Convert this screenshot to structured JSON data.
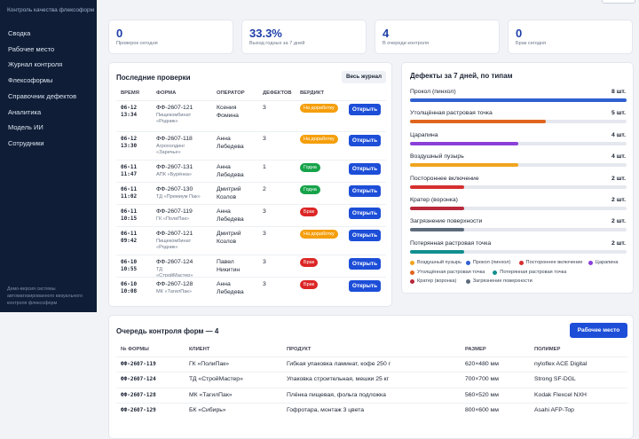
{
  "sidebar": {
    "subtitle": "Контроль качества флексоформ",
    "nav": [
      "Сводка",
      "Рабочее место",
      "Журнал контроля",
      "Флексоформы",
      "Справочник дефектов",
      "Аналитика",
      "Модель ИИ",
      "Сотрудники"
    ],
    "footer": "Демо-версия системы автоматизированного визуального контроля флексоформ"
  },
  "stats": [
    {
      "value": "0",
      "label": "Проверок сегодня"
    },
    {
      "value": "33.3%",
      "label": "Выход годных за 7 дней"
    },
    {
      "value": "4",
      "label": "В очереди контроля"
    },
    {
      "value": "0",
      "label": "Брак сегодня"
    }
  ],
  "recent": {
    "title": "Последние проверки",
    "button": "Весь журнал",
    "columns": [
      "ВРЕМЯ",
      "ФОРМА",
      "ОПЕРАТОР",
      "ДЕФЕКТОВ",
      "ВЕРДИКТ"
    ],
    "action": "Открыть",
    "rows": [
      {
        "time": [
          "06-12",
          "13:34"
        ],
        "form": "ФФ-2607-121",
        "client": "Пищекомбинат «Родник»",
        "operator": [
          "Ксения",
          "Фомина"
        ],
        "defects": "3",
        "verdict": "На доработку",
        "verdict_color": "#f59e0b"
      },
      {
        "time": [
          "06-12",
          "13:30"
        ],
        "form": "ФФ-2607-118",
        "client": "Агрохолдинг «Заречье»",
        "operator": [
          "Анна",
          "Лебедева"
        ],
        "defects": "3",
        "verdict": "На доработку",
        "verdict_color": "#f59e0b"
      },
      {
        "time": [
          "06-11",
          "11:47"
        ],
        "form": "ФФ-2607-131",
        "client": "АПК «Бурёнка»",
        "operator": [
          "Анна",
          "Лебедева"
        ],
        "defects": "1",
        "verdict": "Годна",
        "verdict_color": "#16a34a"
      },
      {
        "time": [
          "06-11",
          "11:02"
        ],
        "form": "ФФ-2607-130",
        "client": "ТД «Премиум Пак»",
        "operator": [
          "Дмитрий",
          "Козлов"
        ],
        "defects": "2",
        "verdict": "Годна",
        "verdict_color": "#16a34a"
      },
      {
        "time": [
          "06-11",
          "10:15"
        ],
        "form": "ФФ-2607-119",
        "client": "ГК «ПолиПак»",
        "operator": [
          "Анна",
          "Лебедева"
        ],
        "defects": "3",
        "verdict": "Брак",
        "verdict_color": "#dc2626"
      },
      {
        "time": [
          "06-11",
          "09:42"
        ],
        "form": "ФФ-2607-121",
        "client": "Пищекомбинат «Родник»",
        "operator": [
          "Дмитрий",
          "Козлов"
        ],
        "defects": "3",
        "verdict": "На доработку",
        "verdict_color": "#f59e0b"
      },
      {
        "time": [
          "06-10",
          "10:55"
        ],
        "form": "ФФ-2607-124",
        "client": "ТД «СтройМастер»",
        "operator": [
          "Павел",
          "Никитин"
        ],
        "defects": "3",
        "verdict": "Брак",
        "verdict_color": "#dc2626"
      },
      {
        "time": [
          "06-10",
          "10:08"
        ],
        "form": "ФФ-2607-128",
        "client": "МК «ТагилПак»",
        "operator": [
          "Анна",
          "Лебедева"
        ],
        "defects": "3",
        "verdict": "Брак",
        "verdict_color": "#dc2626"
      }
    ]
  },
  "defects": {
    "type": "bar",
    "title": "Дефекты за 7 дней, по типам",
    "series": [
      {
        "name": "Прокол (пинхол)",
        "color": "#2f5fd0",
        "value": 8,
        "value_label": "8 шт."
      },
      {
        "name": "Утолщённая растровая точка",
        "color": "#e0651c",
        "value": 5,
        "value_label": "5 шт."
      },
      {
        "name": "Царапина",
        "color": "#8b3fd9",
        "value": 4,
        "value_label": "4 шт."
      },
      {
        "name": "Воздушный пузырь",
        "color": "#f0a41e",
        "value": 4,
        "value_label": "4 шт."
      },
      {
        "name": "Постороннее включение",
        "color": "#d62f2f",
        "value": 2,
        "value_label": "2 шт."
      },
      {
        "name": "Кратер (воронка)",
        "color": "#b8283a",
        "value": 2,
        "value_label": "2 шт."
      },
      {
        "name": "Загрязнение поверхности",
        "color": "#5e6b7c",
        "value": 2,
        "value_label": "2 шт."
      },
      {
        "name": "Потерянная растровая точка",
        "color": "#138f8f",
        "value": 2,
        "value_label": "2 шт."
      }
    ],
    "legend_order": [
      3,
      0,
      4,
      2,
      1,
      7,
      5,
      6
    ]
  },
  "queue": {
    "title": "Очередь контроля форм — 4",
    "button": "Рабочее место",
    "columns": [
      "№ ФОРМЫ",
      "КЛИЕНТ",
      "ПРОДУКТ",
      "РАЗМЕР",
      "ПОЛИМЕР"
    ],
    "rows": [
      [
        "ФФ-2607-119",
        "ГК «ПолиПак»",
        "Гибкая упаковка ламинат, кофе 250 г",
        "620×480 мм",
        "nyloflex ACE Digital"
      ],
      [
        "ФФ-2607-124",
        "ТД «СтройМастер»",
        "Упаковка строительная, мешки 25 кг",
        "700×700 мм",
        "Strong SF-DGL"
      ],
      [
        "ФФ-2607-128",
        "МК «ТагилПак»",
        "Плёнка пищевая, фольга подложка",
        "560×520 мм",
        "Kodak Flexcel NXH"
      ],
      [
        "ФФ-2607-129",
        "БК «Сибирь»",
        "Гофротара, монтаж 3 цвета",
        "800×600 мм",
        "Asahi AFP-Top"
      ]
    ]
  }
}
